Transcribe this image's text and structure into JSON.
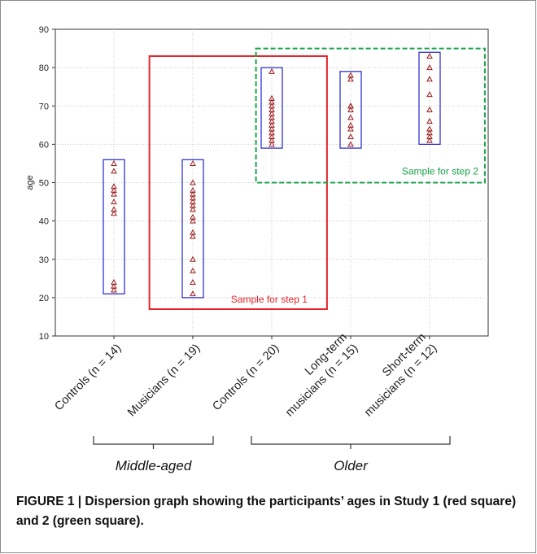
{
  "chart_data": {
    "type": "scatter",
    "ylabel": "age",
    "ylim": [
      10,
      90
    ],
    "yticks": [
      10,
      20,
      30,
      40,
      50,
      60,
      70,
      80,
      90
    ],
    "grid": true,
    "categories": [
      {
        "lines": [
          "Controls (n = 14)"
        ]
      },
      {
        "lines": [
          "Musicians (n = 19)"
        ]
      },
      {
        "lines": [
          "Controls (n = 20)"
        ]
      },
      {
        "lines": [
          "Long-term",
          "musicians (n = 15)"
        ]
      },
      {
        "lines": [
          "Short-term",
          "musicians (n = 12)"
        ]
      }
    ],
    "series": [
      {
        "values": [
          22,
          23,
          24,
          42,
          43,
          45,
          47,
          48,
          49,
          53,
          55
        ]
      },
      {
        "values": [
          21,
          24,
          27,
          30,
          36,
          37,
          40,
          41,
          43,
          44,
          45,
          46,
          47,
          48,
          50,
          55
        ]
      },
      {
        "values": [
          60,
          61,
          62,
          63,
          64,
          65,
          66,
          67,
          68,
          69,
          70,
          71,
          72,
          79
        ]
      },
      {
        "values": [
          60,
          62,
          64,
          65,
          67,
          69,
          70,
          70,
          77,
          78
        ]
      },
      {
        "values": [
          61,
          62,
          63,
          64,
          66,
          69,
          73,
          77,
          80,
          83
        ]
      }
    ],
    "ranges": [
      {
        "min": 21,
        "max": 56
      },
      {
        "min": 20,
        "max": 56
      },
      {
        "min": 59,
        "max": 80
      },
      {
        "min": 59,
        "max": 79
      },
      {
        "min": 60,
        "max": 84
      }
    ],
    "annotations": [
      {
        "label": "Sample for step 1",
        "color": "#e8232a",
        "x_from": 0.45,
        "x_to": 2.7,
        "y_from": 17,
        "y_to": 83
      },
      {
        "label": "Sample for step 2",
        "color": "#1aa34a",
        "x_from": 1.8,
        "x_to": 4.7,
        "y_from": 50,
        "y_to": 85
      }
    ],
    "groups": [
      {
        "label": "Middle-aged",
        "from": 0,
        "to": 1
      },
      {
        "label": "Older",
        "from": 2,
        "to": 4
      }
    ],
    "colors": {
      "marker": "#9b1b1b",
      "range_box": "#2222cc",
      "grid": "#c8c8c8",
      "axis": "#333333"
    }
  },
  "caption": "FIGURE 1 | Dispersion graph showing the participants’ ages in Study 1 (red square) and 2 (green square)."
}
